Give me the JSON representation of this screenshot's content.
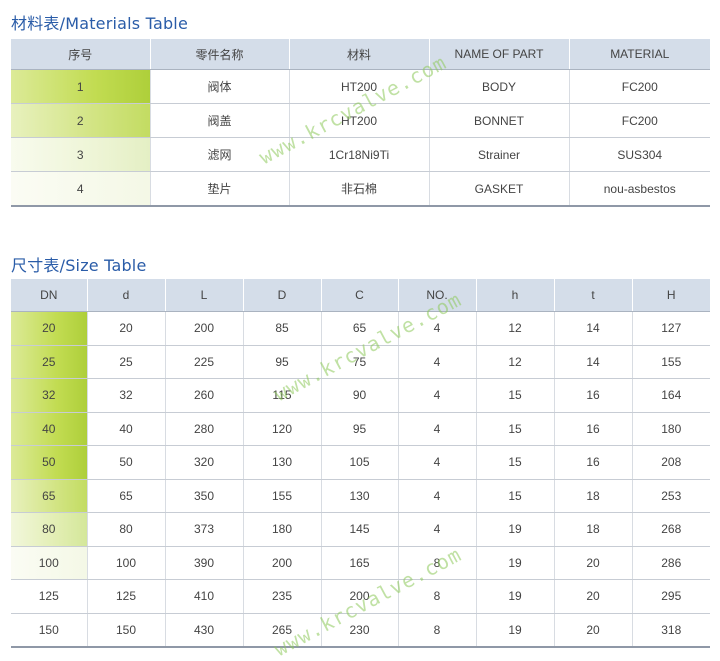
{
  "materials_table": {
    "title": "材料表/Materials Table",
    "headers": [
      "序号",
      "零件名称",
      "材料",
      "NAME OF PART",
      "MATERIAL"
    ],
    "rows": [
      [
        "1",
        "阀体",
        "HT200",
        "BODY",
        "FC200"
      ],
      [
        "2",
        "阀盖",
        "HT200",
        "BONNET",
        "FC200"
      ],
      [
        "3",
        "滤网",
        "1Cr18Ni9Ti",
        "Strainer",
        "SUS304"
      ],
      [
        "4",
        "垫片",
        "非石棉",
        "GASKET",
        "nou-asbestos"
      ]
    ]
  },
  "size_table": {
    "title": "尺寸表/Size Table",
    "headers": [
      "DN",
      "d",
      "L",
      "D",
      "C",
      "NO.",
      "h",
      "t",
      "H"
    ],
    "rows": [
      [
        "20",
        "20",
        "200",
        "85",
        "65",
        "4",
        "12",
        "14",
        "127"
      ],
      [
        "25",
        "25",
        "225",
        "95",
        "75",
        "4",
        "12",
        "14",
        "155"
      ],
      [
        "32",
        "32",
        "260",
        "115",
        "90",
        "4",
        "15",
        "16",
        "164"
      ],
      [
        "40",
        "40",
        "280",
        "120",
        "95",
        "4",
        "15",
        "16",
        "180"
      ],
      [
        "50",
        "50",
        "320",
        "130",
        "105",
        "4",
        "15",
        "16",
        "208"
      ],
      [
        "65",
        "65",
        "350",
        "155",
        "130",
        "4",
        "15",
        "18",
        "253"
      ],
      [
        "80",
        "80",
        "373",
        "180",
        "145",
        "4",
        "19",
        "18",
        "268"
      ],
      [
        "100",
        "100",
        "390",
        "200",
        "165",
        "8",
        "19",
        "20",
        "286"
      ],
      [
        "125",
        "125",
        "410",
        "235",
        "200",
        "8",
        "19",
        "20",
        "295"
      ],
      [
        "150",
        "150",
        "430",
        "265",
        "230",
        "8",
        "19",
        "20",
        "318"
      ]
    ]
  },
  "watermark": "www.krcvalve.com",
  "colors": {
    "title": "#2a5ca8",
    "header_bg": "#d4dde9",
    "highlight": "#aecf3a",
    "watermark": "#8cc85a"
  }
}
